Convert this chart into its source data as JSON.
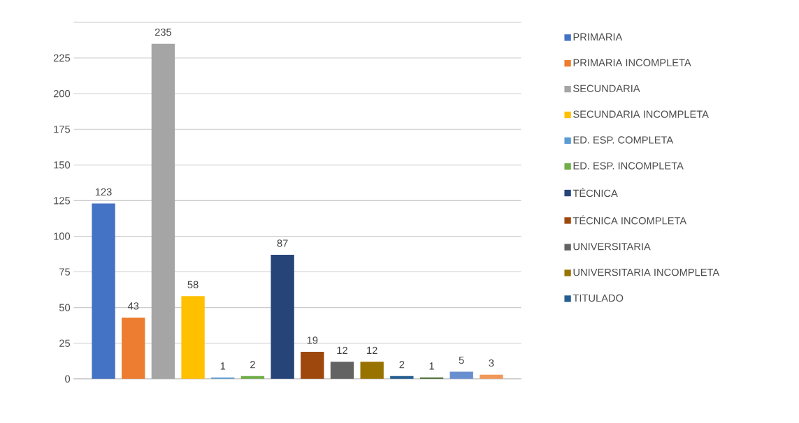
{
  "chart_data": {
    "type": "bar",
    "categories": [
      null
    ],
    "series": [
      {
        "name": "PRIMARIA",
        "color": "#4472c4",
        "values": [
          123
        ]
      },
      {
        "name": "PRIMARIA INCOMPLETA",
        "color": "#ed7d31",
        "values": [
          43
        ]
      },
      {
        "name": "SECUNDARIA",
        "color": "#a5a5a5",
        "values": [
          235
        ]
      },
      {
        "name": "SECUNDARIA INCOMPLETA",
        "color": "#ffc000",
        "values": [
          58
        ]
      },
      {
        "name": "ED. ESP. COMPLETA",
        "color": "#5b9bd5",
        "values": [
          1
        ]
      },
      {
        "name": "ED. ESP. INCOMPLETA",
        "color": "#70ad47",
        "values": [
          2
        ]
      },
      {
        "name": "TÉCNICA",
        "color": "#264478",
        "values": [
          87
        ]
      },
      {
        "name": "TÉCNICA INCOMPLETA",
        "color": "#9e480e",
        "values": [
          19
        ]
      },
      {
        "name": "UNIVERSITARIA",
        "color": "#636363",
        "values": [
          12
        ]
      },
      {
        "name": "UNIVERSITARIA INCOMPLETA",
        "color": "#997300",
        "values": [
          12
        ]
      },
      {
        "name": "TITULADO",
        "color": "#255e91",
        "values": [
          2
        ]
      },
      {
        "color": "#43682b",
        "values": [
          1
        ]
      },
      {
        "color": "#698ed0",
        "values": [
          5
        ]
      },
      {
        "color": "#f1975a",
        "values": [
          3
        ]
      }
    ],
    "ylim": [
      0,
      250
    ],
    "yticks": [
      0,
      25,
      50,
      75,
      100,
      125,
      150,
      175,
      200,
      225,
      {
        "value": 250,
        "label": null
      }
    ],
    "grid": "y",
    "legend": "right",
    "data_labels": true
  }
}
